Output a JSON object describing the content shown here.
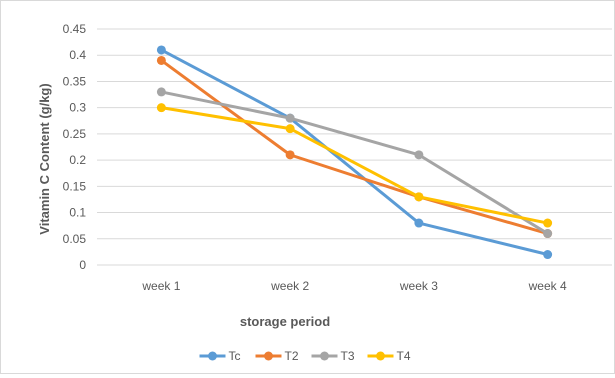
{
  "chart_data": {
    "type": "line",
    "title": "",
    "xlabel": "storage period",
    "ylabel": "Vitamin C Content (g/kg)",
    "categories": [
      "week 1",
      "week 2",
      "week 3",
      "week 4"
    ],
    "ylim": [
      0,
      0.45
    ],
    "yticks": [
      "0",
      "0.05",
      "0.1",
      "0.15",
      "0.2",
      "0.25",
      "0.3",
      "0.35",
      "0.4",
      "0.45"
    ],
    "grid": "horizontal",
    "legend_position": "bottom",
    "series": [
      {
        "name": "Tc",
        "color": "#5b9bd5",
        "values": [
          0.41,
          0.28,
          0.08,
          0.02
        ]
      },
      {
        "name": "T2",
        "color": "#ed7d31",
        "values": [
          0.39,
          0.21,
          0.13,
          0.06
        ]
      },
      {
        "name": "T3",
        "color": "#a5a5a5",
        "values": [
          0.33,
          0.28,
          0.21,
          0.06
        ]
      },
      {
        "name": "T4",
        "color": "#ffc000",
        "values": [
          0.3,
          0.26,
          0.13,
          0.08
        ]
      }
    ]
  }
}
